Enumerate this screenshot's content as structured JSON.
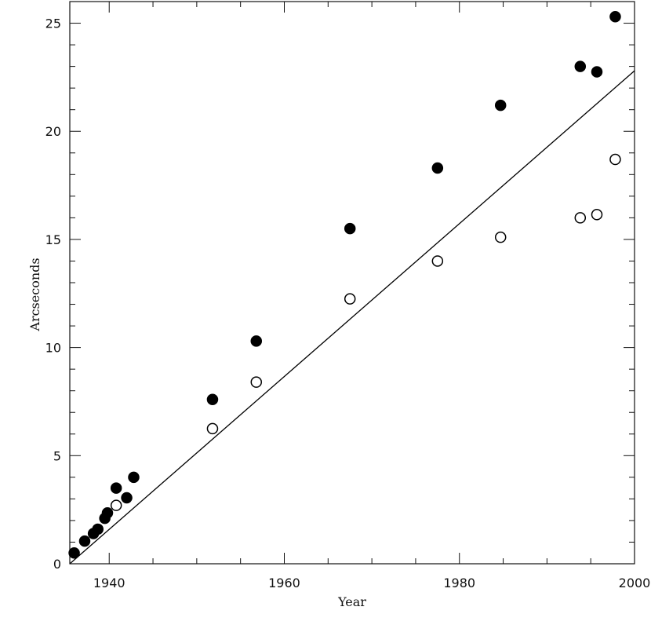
{
  "chart_data": {
    "type": "scatter",
    "title": "",
    "xlabel": "Year",
    "ylabel": "Arcseconds",
    "xlim": [
      1935.5,
      2000
    ],
    "ylim": [
      0,
      26
    ],
    "x_ticks": [
      1940,
      1960,
      1980,
      2000
    ],
    "y_ticks": [
      0,
      5,
      10,
      15,
      20,
      25
    ],
    "x_tick_labels": [
      "1940",
      "1960",
      "1980",
      "2000"
    ],
    "y_tick_labels": [
      "0",
      "5",
      "10",
      "15",
      "20",
      "25"
    ],
    "grid": false,
    "legend": "none",
    "series": [
      {
        "marker": "filled-circle",
        "color": "#000000",
        "x": [
          1936.0,
          1937.2,
          1938.2,
          1938.7,
          1939.5,
          1939.8,
          1940.8,
          1942.0,
          1942.8,
          1951.8,
          1956.8,
          1967.5,
          1977.5,
          1984.7,
          1993.8,
          1995.7,
          1997.8
        ],
        "y": [
          0.5,
          1.05,
          1.4,
          1.6,
          2.1,
          2.35,
          3.5,
          3.05,
          4.0,
          7.6,
          10.3,
          15.5,
          18.3,
          21.2,
          23.0,
          22.75,
          25.3
        ]
      },
      {
        "marker": "open-circle",
        "color": "#000000",
        "x": [
          1940.8,
          1951.8,
          1956.8,
          1967.5,
          1977.5,
          1984.7,
          1993.8,
          1995.7,
          1997.8
        ],
        "y": [
          2.7,
          6.25,
          8.4,
          12.25,
          14.0,
          15.1,
          16.0,
          16.15,
          18.7
        ]
      },
      {
        "type": "line",
        "color": "#000000",
        "x": [
          1935.5,
          2000
        ],
        "y": [
          0,
          22.8
        ]
      }
    ]
  }
}
